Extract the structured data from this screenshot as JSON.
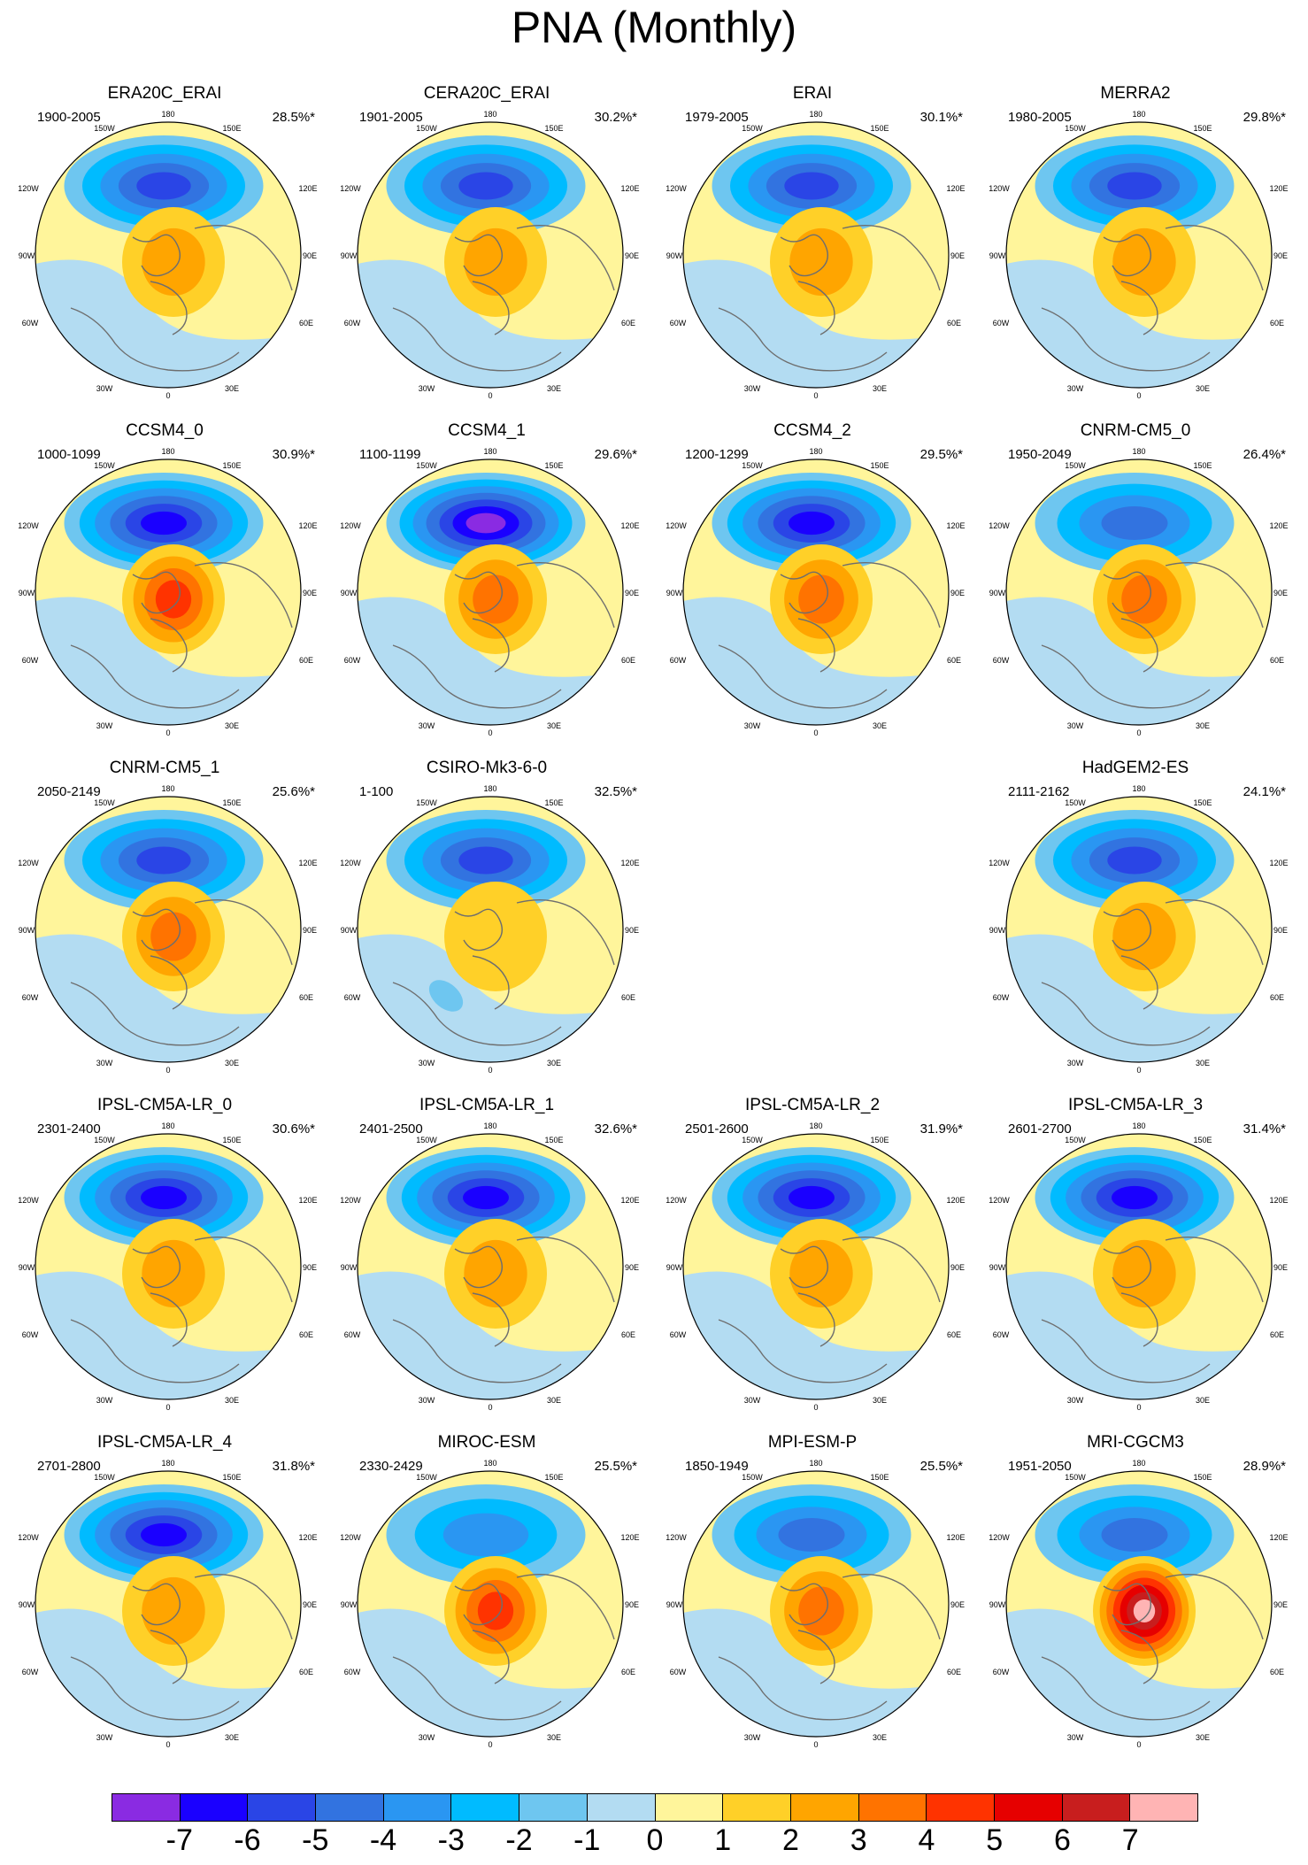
{
  "title": "PNA (Monthly)",
  "longitude_labels": [
    "180",
    "150W",
    "150E",
    "120W",
    "120E",
    "90W",
    "90E",
    "60W",
    "60E",
    "30W",
    "30E",
    "0"
  ],
  "panels": [
    {
      "title": "ERA20C_ERAI",
      "period": "1900-2005",
      "percent": "28.5%*",
      "high": 2,
      "low": -5,
      "extra": null
    },
    {
      "title": "CERA20C_ERAI",
      "period": "1901-2005",
      "percent": "30.2%*",
      "high": 2,
      "low": -5,
      "extra": null
    },
    {
      "title": "ERAI",
      "period": "1979-2005",
      "percent": "30.1%*",
      "high": 2,
      "low": -5,
      "extra": null
    },
    {
      "title": "MERRA2",
      "period": "1980-2005",
      "percent": "29.8%*",
      "high": 2,
      "low": -5,
      "extra": null
    },
    {
      "title": "CCSM4_0",
      "period": "1000-1099",
      "percent": "30.9%*",
      "high": 4,
      "low": -6,
      "extra": null
    },
    {
      "title": "CCSM4_1",
      "period": "1100-1199",
      "percent": "29.6%*",
      "high": 3,
      "low": -7,
      "extra": null
    },
    {
      "title": "CCSM4_2",
      "period": "1200-1299",
      "percent": "29.5%*",
      "high": 3,
      "low": -6,
      "extra": null
    },
    {
      "title": "CNRM-CM5_0",
      "period": "1950-2049",
      "percent": "26.4%*",
      "high": 3,
      "low": -4,
      "extra": null
    },
    {
      "title": "CNRM-CM5_1",
      "period": "2050-2149",
      "percent": "25.6%*",
      "high": 3,
      "low": -5,
      "extra": null
    },
    {
      "title": "CSIRO-Mk3-6-0",
      "period": "1-100",
      "percent": "32.5%*",
      "high": 1,
      "low": -5,
      "extra": -2
    },
    null,
    {
      "title": "HadGEM2-ES",
      "period": "2111-2162",
      "percent": "24.1%*",
      "high": 2,
      "low": -5,
      "extra": null
    },
    {
      "title": "IPSL-CM5A-LR_0",
      "period": "2301-2400",
      "percent": "30.6%*",
      "high": 2,
      "low": -6,
      "extra": null
    },
    {
      "title": "IPSL-CM5A-LR_1",
      "period": "2401-2500",
      "percent": "32.6%*",
      "high": 2,
      "low": -6,
      "extra": null
    },
    {
      "title": "IPSL-CM5A-LR_2",
      "period": "2501-2600",
      "percent": "31.9%*",
      "high": 2,
      "low": -6,
      "extra": null
    },
    {
      "title": "IPSL-CM5A-LR_3",
      "period": "2601-2700",
      "percent": "31.4%*",
      "high": 2,
      "low": -6,
      "extra": null
    },
    {
      "title": "IPSL-CM5A-LR_4",
      "period": "2701-2800",
      "percent": "31.8%*",
      "high": 2,
      "low": -6,
      "extra": null
    },
    {
      "title": "MIROC-ESM",
      "period": "2330-2429",
      "percent": "25.5%*",
      "high": 4,
      "low": -3,
      "extra": null
    },
    {
      "title": "MPI-ESM-P",
      "period": "1850-1949",
      "percent": "25.5%*",
      "high": 3,
      "low": -4,
      "extra": null
    },
    {
      "title": "MRI-CGCM3",
      "period": "1951-2050",
      "percent": "28.9%*",
      "high": 7,
      "low": -4,
      "extra": null
    }
  ],
  "colorbar": {
    "colors": [
      "#8a2be2",
      "#1a00ff",
      "#2a45e6",
      "#3273e0",
      "#2a96f2",
      "#00bbff",
      "#6ec6f0",
      "#b3dcf2",
      "#fff59b",
      "#ffd028",
      "#ffa500",
      "#ff7300",
      "#ff3300",
      "#e60000",
      "#c81e1e",
      "#ffb4b4"
    ],
    "labels": [
      "-7",
      "-6",
      "-5",
      "-4",
      "-3",
      "-2",
      "-1",
      "0",
      "1",
      "2",
      "3",
      "4",
      "5",
      "6",
      "7"
    ]
  }
}
